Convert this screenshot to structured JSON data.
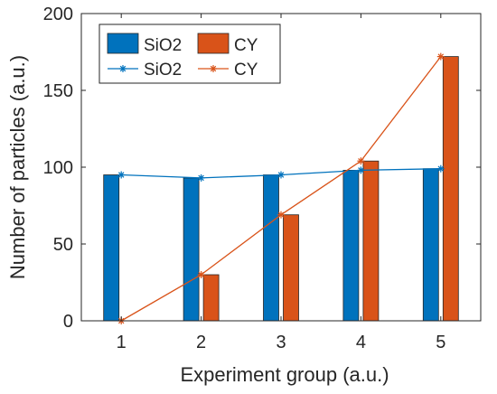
{
  "chart_data": {
    "type": "bar",
    "xlabel": "Experiment group (a.u.)",
    "ylabel": "Number of particles (a.u.)",
    "ylim": [
      0,
      200
    ],
    "xlim": [
      0.5,
      5.5
    ],
    "yticks": [
      0,
      50,
      100,
      150,
      200
    ],
    "x": [
      1,
      2,
      3,
      4,
      5
    ],
    "xtick_labels": [
      "1",
      "2",
      "3",
      "4",
      "5"
    ],
    "grid": false,
    "legend": "top-left, two columns",
    "series": [
      {
        "name": "SiO2",
        "kind": "bar",
        "color": "#0072BD",
        "values": [
          95,
          93,
          95,
          98,
          99
        ]
      },
      {
        "name": "CY",
        "kind": "bar",
        "color": "#D95319",
        "values": [
          0,
          30,
          69,
          104,
          172
        ]
      },
      {
        "name": "SiO2",
        "kind": "line",
        "marker": "asterisk",
        "color": "#0072BD",
        "values": [
          95,
          93,
          95,
          98,
          99
        ]
      },
      {
        "name": "CY",
        "kind": "line",
        "marker": "asterisk",
        "color": "#D95319",
        "values": [
          0,
          30,
          69,
          104,
          172
        ]
      }
    ]
  }
}
